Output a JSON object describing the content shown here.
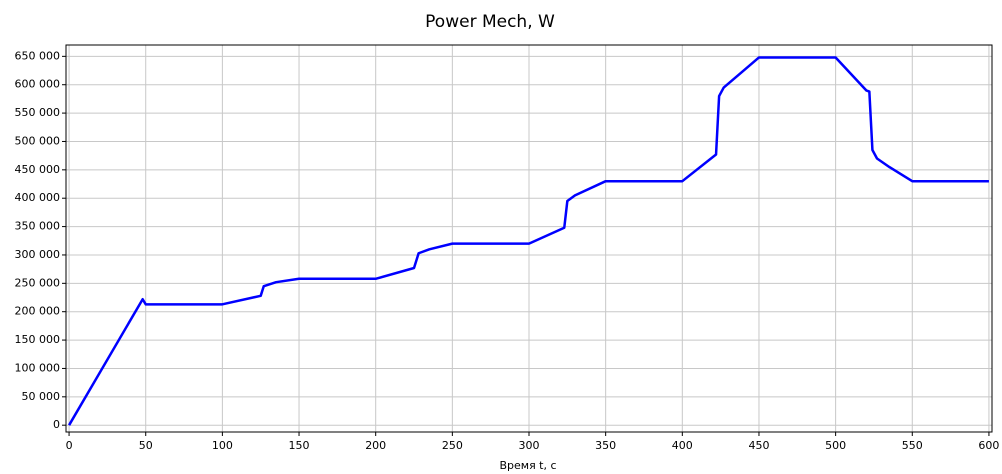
{
  "chart_data": {
    "type": "line",
    "title": "Power Mech, W",
    "x_label": "Время t, c",
    "xlim": [
      -2,
      602
    ],
    "ylim": [
      -12000,
      670000
    ],
    "xticks": [
      0,
      50,
      100,
      150,
      200,
      250,
      300,
      350,
      400,
      450,
      500,
      550,
      600
    ],
    "yticks": [
      {
        "value": 0,
        "label": "0"
      },
      {
        "value": 50000,
        "label": "50 000"
      },
      {
        "value": 100000,
        "label": "100 000"
      },
      {
        "value": 150000,
        "label": "150 000"
      },
      {
        "value": 200000,
        "label": "200 000"
      },
      {
        "value": 250000,
        "label": "250 000"
      },
      {
        "value": 300000,
        "label": "300 000"
      },
      {
        "value": 350000,
        "label": "350 000"
      },
      {
        "value": 400000,
        "label": "400 000"
      },
      {
        "value": 450000,
        "label": "450 000"
      },
      {
        "value": 500000,
        "label": "500 000"
      },
      {
        "value": 550000,
        "label": "550 000"
      },
      {
        "value": 600000,
        "label": "600 000"
      },
      {
        "value": 650000,
        "label": "650 000"
      }
    ],
    "grid": true,
    "x": [
      0,
      48,
      50,
      100,
      125,
      127,
      135,
      150,
      200,
      225,
      228,
      235,
      250,
      300,
      323,
      325,
      330,
      350,
      400,
      422,
      424,
      427,
      440,
      450,
      500,
      520,
      522,
      524,
      527,
      535,
      550,
      600
    ],
    "series": [
      {
        "color": "#0000ff",
        "values": [
          0,
          222000,
          213000,
          213000,
          228000,
          245000,
          252000,
          258000,
          258000,
          277000,
          303000,
          310000,
          320000,
          320000,
          348000,
          395000,
          405000,
          430000,
          430000,
          477000,
          580000,
          595000,
          625000,
          648000,
          648000,
          590000,
          588000,
          485000,
          470000,
          455000,
          430000,
          430000
        ]
      }
    ]
  }
}
